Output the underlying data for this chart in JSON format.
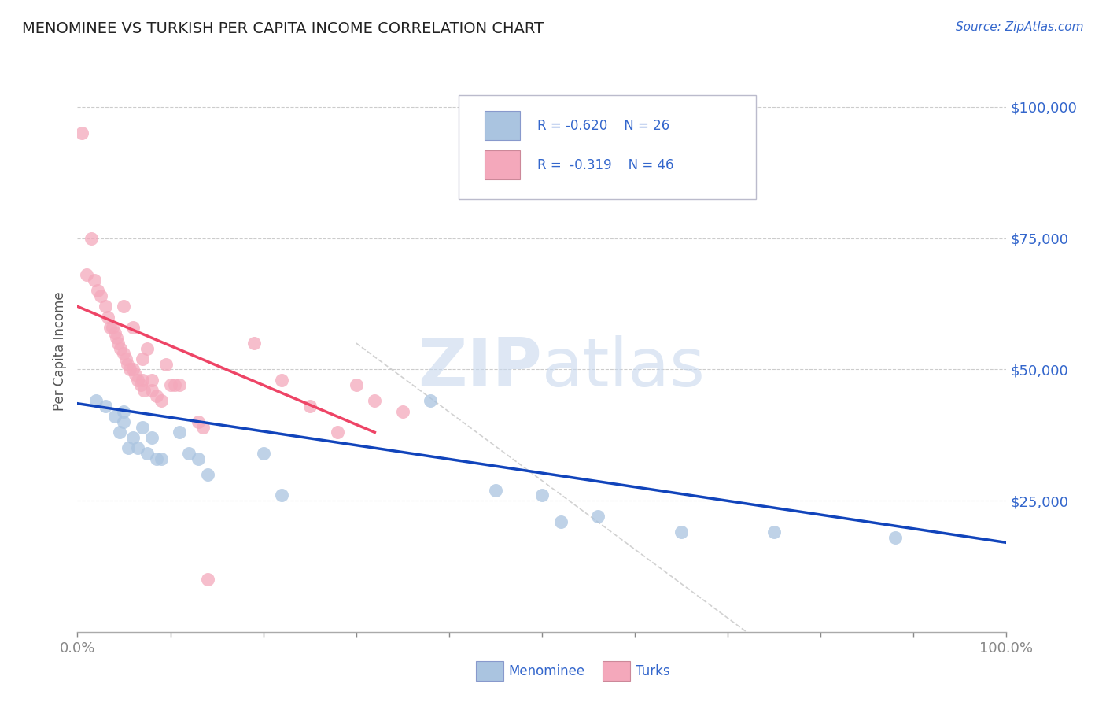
{
  "title": "MENOMINEE VS TURKISH PER CAPITA INCOME CORRELATION CHART",
  "source": "Source: ZipAtlas.com",
  "ylabel": "Per Capita Income",
  "xlim": [
    0,
    1.0
  ],
  "ylim": [
    0,
    107000
  ],
  "yticks": [
    25000,
    50000,
    75000,
    100000
  ],
  "ytick_labels": [
    "$25,000",
    "$50,000",
    "$75,000",
    "$100,000"
  ],
  "background_color": "#ffffff",
  "grid_color": "#cccccc",
  "title_color": "#222222",
  "axis_label_color": "#555555",
  "tick_color": "#3366cc",
  "menominee_color": "#aac4e0",
  "turks_color": "#f4a8bb",
  "menominee_line_color": "#1144bb",
  "turks_line_color": "#ee4466",
  "menominee_scatter": {
    "x": [
      0.02,
      0.03,
      0.04,
      0.045,
      0.05,
      0.05,
      0.055,
      0.06,
      0.065,
      0.07,
      0.075,
      0.08,
      0.085,
      0.09,
      0.11,
      0.12,
      0.13,
      0.14,
      0.2,
      0.22,
      0.38,
      0.45,
      0.5,
      0.52,
      0.56,
      0.65,
      0.75,
      0.88
    ],
    "y": [
      44000,
      43000,
      41000,
      38000,
      42000,
      40000,
      35000,
      37000,
      35000,
      39000,
      34000,
      37000,
      33000,
      33000,
      38000,
      34000,
      33000,
      30000,
      34000,
      26000,
      44000,
      27000,
      26000,
      21000,
      22000,
      19000,
      19000,
      18000
    ]
  },
  "turks_scatter": {
    "x": [
      0.005,
      0.01,
      0.015,
      0.018,
      0.022,
      0.025,
      0.03,
      0.033,
      0.035,
      0.038,
      0.04,
      0.042,
      0.044,
      0.046,
      0.05,
      0.052,
      0.054,
      0.056,
      0.06,
      0.062,
      0.065,
      0.068,
      0.07,
      0.072,
      0.075,
      0.08,
      0.085,
      0.09,
      0.095,
      0.1,
      0.105,
      0.11,
      0.13,
      0.135,
      0.14,
      0.19,
      0.22,
      0.25,
      0.28,
      0.3,
      0.32,
      0.35,
      0.05,
      0.06,
      0.07,
      0.08
    ],
    "y": [
      95000,
      68000,
      75000,
      67000,
      65000,
      64000,
      62000,
      60000,
      58000,
      58000,
      57000,
      56000,
      55000,
      54000,
      53000,
      52000,
      51000,
      50000,
      50000,
      49000,
      48000,
      47000,
      48000,
      46000,
      54000,
      46000,
      45000,
      44000,
      51000,
      47000,
      47000,
      47000,
      40000,
      39000,
      10000,
      55000,
      48000,
      43000,
      38000,
      47000,
      44000,
      42000,
      62000,
      58000,
      52000,
      48000
    ]
  },
  "menominee_line": {
    "x0": 0.0,
    "y0": 43500,
    "x1": 1.0,
    "y1": 17000
  },
  "turks_line": {
    "x0": 0.0,
    "y0": 62000,
    "x1": 0.32,
    "y1": 38000
  },
  "diag_line": {
    "x0": 0.3,
    "y0": 55000,
    "x1": 0.72,
    "y1": 0
  }
}
